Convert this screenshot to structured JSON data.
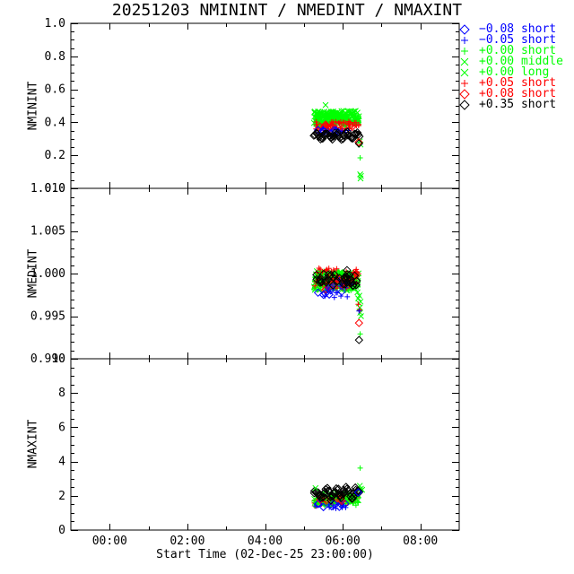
{
  "chart_data": {
    "type": "scatter",
    "title": "20251203 NMININT / NMEDINT / NMAXINT",
    "xlabel": "Start Time (02-Dec-25 23:00:00)",
    "x_axis_note": "x axis in hours after 02-Dec-25 23:00:00, range 23:00 to 09:00",
    "xlim": [
      0,
      10
    ],
    "x_major_ticks": [
      {
        "pos": 1,
        "label": "00:00"
      },
      {
        "pos": 3,
        "label": "02:00"
      },
      {
        "pos": 5,
        "label": "04:00"
      },
      {
        "pos": 7,
        "label": "06:00"
      },
      {
        "pos": 9,
        "label": "08:00"
      }
    ],
    "x_minor_ticks": [
      2,
      4,
      6,
      8
    ],
    "legend": [
      {
        "marker": "diamond",
        "color": "#0000ff",
        "label": "−0.08 short"
      },
      {
        "marker": "plus",
        "color": "#0000ff",
        "label": "−0.05 short"
      },
      {
        "marker": "plus",
        "color": "#00ff00",
        "label": "+0.00 short"
      },
      {
        "marker": "x",
        "color": "#00ff00",
        "label": "+0.00 middle"
      },
      {
        "marker": "x",
        "color": "#00ff00",
        "label": "+0.00 long"
      },
      {
        "marker": "plus",
        "color": "#ff0000",
        "label": "+0.05 short"
      },
      {
        "marker": "diamond",
        "color": "#ff0000",
        "label": "+0.08 short"
      },
      {
        "marker": "diamond",
        "color": "#000000",
        "label": "+0.35 short"
      }
    ],
    "panels": [
      {
        "ylabel": "NMININT",
        "ylim": [
          0,
          1
        ],
        "y_minor": 0.05,
        "yticks": [
          {
            "pos": 0.0,
            "label": "0.0"
          },
          {
            "pos": 0.2,
            "label": "0.2"
          },
          {
            "pos": 0.4,
            "label": "0.4"
          },
          {
            "pos": 0.6,
            "label": "0.6"
          },
          {
            "pos": 0.8,
            "label": "0.8"
          },
          {
            "pos": 1.0,
            "label": "1.0"
          }
        ],
        "series": [
          {
            "legend": "+0.00 middle",
            "marker": "x",
            "color": "#00ff00",
            "gen": {
              "seed": 11,
              "count": 170,
              "x": [
                6.26,
                7.42
              ],
              "y": [
                0.385,
                0.47
              ]
            }
          },
          {
            "legend": "+0.00 long",
            "marker": "x",
            "color": "#00ff00",
            "gen": {
              "seed": 12,
              "count": 60,
              "x": [
                6.28,
                7.4
              ],
              "y": [
                0.39,
                0.46
              ]
            }
          },
          {
            "legend": "+0.00 short",
            "marker": "plus",
            "color": "#00ff00",
            "gen": {
              "seed": 13,
              "count": 50,
              "x": [
                6.27,
                7.41
              ],
              "y": [
                0.385,
                0.455
              ]
            }
          },
          {
            "legend": "+0.05 short",
            "marker": "plus",
            "color": "#ff0000",
            "gen": {
              "seed": 14,
              "count": 60,
              "x": [
                6.26,
                7.42
              ],
              "y": [
                0.35,
                0.405
              ]
            }
          },
          {
            "legend": "+0.08 short",
            "marker": "diamond",
            "color": "#ff0000",
            "gen": {
              "seed": 15,
              "count": 6,
              "x": [
                6.35,
                7.3
              ],
              "y": [
                0.36,
                0.4
              ]
            }
          },
          {
            "legend": "−0.05 short",
            "marker": "plus",
            "color": "#0000ff",
            "gen": {
              "seed": 16,
              "count": 10,
              "x": [
                6.33,
                7.2
              ],
              "y": [
                0.335,
                0.365
              ]
            }
          },
          {
            "legend": "−0.08 short",
            "marker": "diamond",
            "color": "#0000ff",
            "gen": {
              "seed": 17,
              "count": 10,
              "x": [
                6.3,
                7.05
              ],
              "y": [
                0.33,
                0.36
              ]
            }
          },
          {
            "legend": "+0.35 short",
            "marker": "diamond",
            "color": "#000000",
            "gen": {
              "seed": 18,
              "count": 50,
              "x": [
                6.26,
                7.42
              ],
              "wave": {
                "base": 0.318,
                "amp": 0.018,
                "freq": 4.5,
                "jitter": 0.016
              }
            }
          },
          {
            "legend": "+0.00 middle",
            "marker": "x",
            "color": "#00ff00",
            "points": [
              [
                6.56,
                0.505
              ],
              [
                7.44,
                0.285
              ],
              [
                7.46,
                0.265
              ],
              [
                7.45,
                0.085
              ],
              [
                7.46,
                0.06
              ],
              [
                7.47,
                0.075
              ]
            ]
          },
          {
            "legend": "+0.00 short",
            "marker": "plus",
            "color": "#00ff00",
            "points": [
              [
                7.45,
                0.185
              ]
            ]
          },
          {
            "legend": "+0.08 short",
            "marker": "diamond",
            "color": "#ff0000",
            "points": [
              [
                7.41,
                0.28
              ]
            ]
          },
          {
            "legend": "+0.35 short",
            "marker": "diamond",
            "color": "#000000",
            "points": [
              [
                7.42,
                0.272
              ]
            ]
          }
        ]
      },
      {
        "ylabel": "NMEDINT",
        "ylim": [
          0.99,
          1.01
        ],
        "y_minor": 0.001,
        "yticks": [
          {
            "pos": 0.99,
            "label": "0.990"
          },
          {
            "pos": 0.995,
            "label": "0.995"
          },
          {
            "pos": 1.0,
            "label": "1.000"
          },
          {
            "pos": 1.005,
            "label": "1.005"
          },
          {
            "pos": 1.01,
            "label": "1.010"
          }
        ],
        "series": [
          {
            "legend": "+0.00 middle",
            "marker": "x",
            "color": "#00ff00",
            "gen": {
              "seed": 21,
              "count": 150,
              "x": [
                6.26,
                7.42
              ],
              "y": [
                0.9982,
                1.0003
              ]
            }
          },
          {
            "legend": "+0.00 long",
            "marker": "x",
            "color": "#00ff00",
            "gen": {
              "seed": 22,
              "count": 50,
              "x": [
                6.28,
                7.4
              ],
              "y": [
                0.998,
                1.0001
              ]
            }
          },
          {
            "legend": "+0.00 short",
            "marker": "plus",
            "color": "#00ff00",
            "gen": {
              "seed": 23,
              "count": 40,
              "x": [
                6.27,
                7.41
              ],
              "y": [
                0.998,
                1.0
              ]
            }
          },
          {
            "legend": "+0.05 short",
            "marker": "plus",
            "color": "#ff0000",
            "gen": {
              "seed": 24,
              "count": 60,
              "x": [
                6.26,
                7.42
              ],
              "y": [
                0.9982,
                1.0007
              ]
            }
          },
          {
            "legend": "+0.08 short",
            "marker": "diamond",
            "color": "#ff0000",
            "gen": {
              "seed": 25,
              "count": 6,
              "x": [
                6.3,
                7.3
              ],
              "y": [
                0.998,
                0.9996
              ]
            }
          },
          {
            "legend": "−0.05 short",
            "marker": "plus",
            "color": "#0000ff",
            "gen": {
              "seed": 26,
              "count": 14,
              "x": [
                6.3,
                7.25
              ],
              "y": [
                0.9972,
                0.9993
              ]
            }
          },
          {
            "legend": "−0.08 short",
            "marker": "diamond",
            "color": "#0000ff",
            "gen": {
              "seed": 27,
              "count": 8,
              "x": [
                6.35,
                7.1
              ],
              "y": [
                0.9975,
                0.999
              ]
            }
          },
          {
            "legend": "+0.35 short",
            "marker": "diamond",
            "color": "#000000",
            "gen": {
              "seed": 28,
              "count": 40,
              "x": [
                6.26,
                7.4
              ],
              "y": [
                0.9985,
                1.0
              ]
            }
          },
          {
            "legend": "+0.00 middle",
            "marker": "x",
            "color": "#00ff00",
            "points": [
              [
                7.38,
                0.9978
              ],
              [
                7.4,
                0.9971
              ],
              [
                7.42,
                0.9965
              ],
              [
                7.43,
                0.9974
              ],
              [
                7.44,
                0.996
              ],
              [
                7.45,
                0.9954
              ],
              [
                7.46,
                0.9967
              ],
              [
                7.47,
                0.995
              ]
            ]
          },
          {
            "legend": "+0.00 short",
            "marker": "plus",
            "color": "#00ff00",
            "points": [
              [
                7.43,
                0.9958
              ],
              [
                7.45,
                0.9929
              ]
            ]
          },
          {
            "legend": "+0.05 short",
            "marker": "plus",
            "color": "#ff0000",
            "points": [
              [
                7.4,
                0.9964
              ],
              [
                7.44,
                0.9957
              ]
            ]
          },
          {
            "legend": "−0.05 short",
            "marker": "plus",
            "color": "#0000ff",
            "points": [
              [
                7.42,
                0.9956
              ]
            ]
          },
          {
            "legend": "+0.08 short",
            "marker": "diamond",
            "color": "#ff0000",
            "points": [
              [
                7.42,
                0.9942
              ]
            ]
          },
          {
            "legend": "+0.35 short",
            "marker": "diamond",
            "color": "#000000",
            "points": [
              [
                7.11,
                1.0004
              ],
              [
                7.42,
                0.9922
              ]
            ]
          }
        ]
      },
      {
        "ylabel": "NMAXINT",
        "ylim": [
          0,
          10
        ],
        "y_minor": 0.5,
        "yticks": [
          {
            "pos": 0,
            "label": "0"
          },
          {
            "pos": 2,
            "label": "2"
          },
          {
            "pos": 4,
            "label": "4"
          },
          {
            "pos": 6,
            "label": "6"
          },
          {
            "pos": 8,
            "label": "8"
          },
          {
            "pos": 10,
            "label": "10"
          }
        ],
        "series": [
          {
            "legend": "+0.05 short",
            "marker": "plus",
            "color": "#ff0000",
            "gen": {
              "seed": 31,
              "count": 70,
              "x": [
                6.26,
                7.42
              ],
              "y": [
                1.4,
                1.85
              ],
              "trend": 0.2
            }
          },
          {
            "legend": "+0.00 middle",
            "marker": "x",
            "color": "#00ff00",
            "gen": {
              "seed": 32,
              "count": 45,
              "x": [
                6.26,
                7.42
              ],
              "y": [
                1.45,
                2.1
              ],
              "trend": 0.1
            }
          },
          {
            "legend": "+0.00 long",
            "marker": "x",
            "color": "#00ff00",
            "gen": {
              "seed": 33,
              "count": 25,
              "x": [
                6.3,
                7.4
              ],
              "y": [
                1.5,
                2.2
              ]
            }
          },
          {
            "legend": "+0.00 short",
            "marker": "plus",
            "color": "#00ff00",
            "gen": {
              "seed": 34,
              "count": 35,
              "x": [
                6.27,
                7.42
              ],
              "y": [
                1.35,
                1.85
              ],
              "trend": 0.1
            }
          },
          {
            "legend": "−0.05 short",
            "marker": "plus",
            "color": "#0000ff",
            "gen": {
              "seed": 35,
              "count": 10,
              "x": [
                6.3,
                7.2
              ],
              "y": [
                1.25,
                1.55
              ]
            }
          },
          {
            "legend": "−0.08 short",
            "marker": "diamond",
            "color": "#0000ff",
            "gen": {
              "seed": 36,
              "count": 8,
              "x": [
                6.3,
                7.1
              ],
              "y": [
                1.3,
                1.55
              ]
            }
          },
          {
            "legend": "+0.08 short",
            "marker": "diamond",
            "color": "#ff0000",
            "gen": {
              "seed": 37,
              "count": 6,
              "x": [
                6.4,
                7.3
              ],
              "y": [
                1.55,
                1.85
              ]
            }
          },
          {
            "legend": "+0.35 short",
            "marker": "diamond",
            "color": "#000000",
            "gen": {
              "seed": 38,
              "count": 50,
              "x": [
                6.26,
                7.42
              ],
              "trend": 0.15,
              "wave": {
                "base": 2.05,
                "amp": 0.25,
                "freq": 4.5,
                "jitter": 0.3
              }
            }
          },
          {
            "legend": "+0.00 short",
            "marker": "plus",
            "color": "#00ff00",
            "points": [
              [
                7.45,
                3.62
              ]
            ]
          },
          {
            "legend": "+0.00 middle",
            "marker": "x",
            "color": "#00ff00",
            "points": [
              [
                6.3,
                2.45
              ],
              [
                7.44,
                2.58
              ],
              [
                7.47,
                2.42
              ],
              [
                7.5,
                2.35
              ]
            ]
          },
          {
            "legend": "+0.35 short",
            "marker": "diamond",
            "color": "#000000",
            "points": [
              [
                7.38,
                2.25
              ],
              [
                7.41,
                2.18
              ],
              [
                7.4,
                2.3
              ]
            ]
          },
          {
            "legend": "−0.08 short",
            "marker": "diamond",
            "color": "#0000ff",
            "points": [
              [
                7.4,
                2.2
              ]
            ]
          }
        ]
      }
    ]
  }
}
